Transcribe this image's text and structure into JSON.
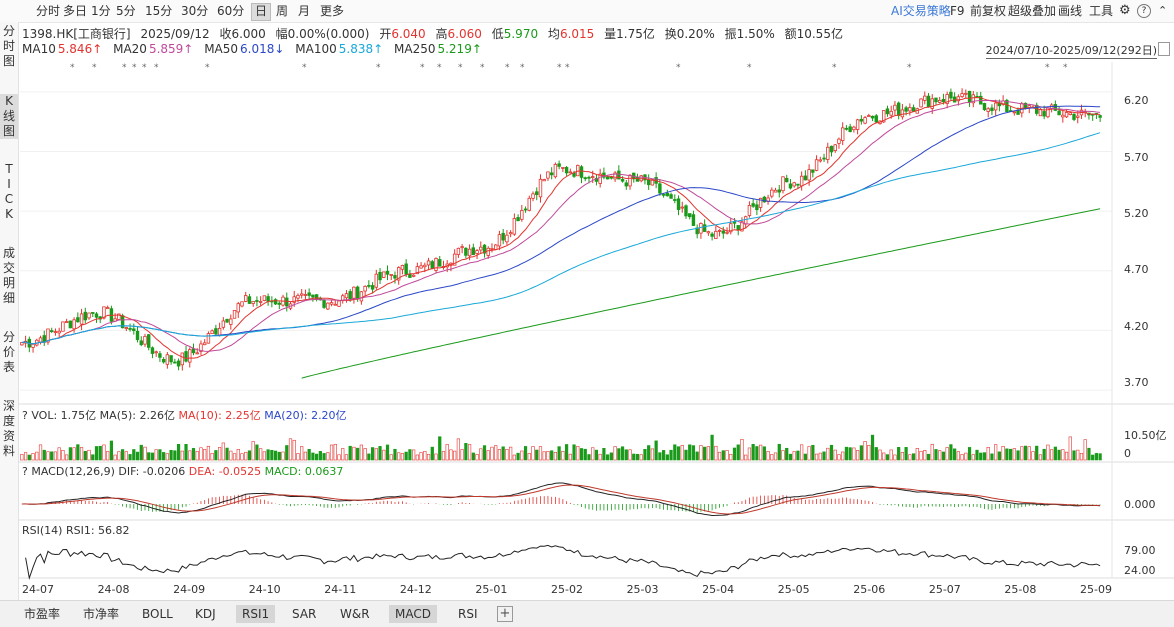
{
  "toolbar": {
    "periods": [
      "分时",
      "多日",
      "1分",
      "5分",
      "15分",
      "30分",
      "60分",
      "日",
      "周",
      "月",
      "更多"
    ],
    "active_period": "日",
    "ai_label": "AI交易策略",
    "f9_label": "F9",
    "adjust_label": "前复权",
    "overlay_label": "超级叠加",
    "draw_label": "画线",
    "tools_label": "工具"
  },
  "sidebar": {
    "items": [
      {
        "label": "分时图"
      },
      {
        "label": "K线图"
      },
      {
        "label": "TICK"
      },
      {
        "label": "成交明细"
      },
      {
        "label": "分价表"
      },
      {
        "label": "深度资料"
      }
    ],
    "active": "K线图"
  },
  "quote": {
    "code": "1398.HK[工商银行]",
    "date": "2025/09/12",
    "close": "收6.000",
    "change": "幅0.00%(0.000)",
    "open_label": "开",
    "open": "6.040",
    "high_label": "高",
    "high": "6.060",
    "low_label": "低",
    "low": "5.970",
    "avg_label": "均",
    "avg": "6.015",
    "volume": "量1.75亿",
    "turnover_rate": "换0.20%",
    "amplitude": "振1.50%",
    "amount": "额10.55亿"
  },
  "ma_legend": [
    {
      "label": "MA10",
      "value": "5.846↑",
      "color": "#e3342f"
    },
    {
      "label": "MA20",
      "value": "5.859↑",
      "color": "#c04a9a"
    },
    {
      "label": "MA50",
      "value": "6.018↓",
      "color": "#2b48c8"
    },
    {
      "label": "MA100",
      "value": "5.838↑",
      "color": "#19a8d8"
    },
    {
      "label": "MA250",
      "value": "5.219↑",
      "color": "#1a9a1a"
    }
  ],
  "date_range": "2024/07/10-2025/09/12(292日)",
  "price_axis": [
    "6.20",
    "5.70",
    "5.20",
    "4.70",
    "4.20",
    "3.70"
  ],
  "vol_indicator": {
    "label": "VOL: 1.75亿",
    "ma5": "MA(5): 2.26亿",
    "ma10": "MA(10): 2.25亿",
    "ma20": "MA(20): 2.20亿",
    "axis_top": "10.50亿",
    "axis_zero": "0"
  },
  "macd_indicator": {
    "label": "MACD(12,26,9)",
    "dif": "DIF: -0.0206",
    "dea": "DEA: -0.0525",
    "macd": "MACD: 0.0637",
    "axis": "0.000"
  },
  "rsi_indicator": {
    "label": "RSI(14)",
    "rsi1": "RSI1: 56.82",
    "axis_high": "79.00",
    "axis_low": "24.00"
  },
  "x_axis": [
    "24-07",
    "24-08",
    "24-09",
    "24-10",
    "24-11",
    "24-12",
    "25-01",
    "25-02",
    "25-03",
    "25-04",
    "25-05",
    "25-06",
    "25-07",
    "25-08",
    "25-09"
  ],
  "bottom_tabs": [
    "市盈率",
    "市净率",
    "BOLL",
    "KDJ",
    "RSI1",
    "SAR",
    "W&R",
    "MACD",
    "RSI"
  ],
  "active_tabs": [
    "RSI1",
    "MACD"
  ],
  "colors": {
    "up": "#e3342f",
    "down": "#1a9a1a",
    "dif": "#222222",
    "dea": "#c0392b"
  },
  "chart_data": {
    "type": "candlestick",
    "price_range": [
      3.6,
      6.45
    ],
    "anchors": [
      {
        "month": "24-07",
        "close": 4.1
      },
      {
        "month": "24-08",
        "close": 4.35
      },
      {
        "month": "24-09",
        "close": 3.95
      },
      {
        "month": "24-10",
        "close": 4.45
      },
      {
        "month": "24-11",
        "close": 4.45
      },
      {
        "month": "24-12",
        "close": 4.7
      },
      {
        "month": "25-01",
        "close": 4.9
      },
      {
        "month": "25-02",
        "close": 5.55
      },
      {
        "month": "25-03",
        "close": 5.45
      },
      {
        "month": "25-04",
        "close": 5.0
      },
      {
        "month": "25-05",
        "close": 5.45
      },
      {
        "month": "25-06",
        "close": 6.0
      },
      {
        "month": "25-07",
        "close": 6.15
      },
      {
        "month": "25-08",
        "close": 6.05
      },
      {
        "month": "25-09",
        "close": 6.0
      }
    ]
  }
}
